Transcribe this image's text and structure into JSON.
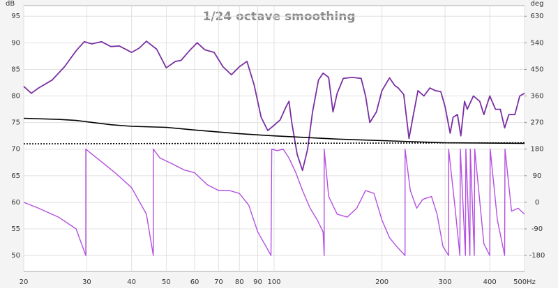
{
  "chart_data": {
    "type": "line",
    "title": "1/24 octave smoothing",
    "y_label": "dB",
    "y2_label": "deg",
    "xscale": "log",
    "xlim": [
      20,
      500
    ],
    "ylim": [
      47,
      97
    ],
    "y2lim": [
      -234,
      666
    ],
    "grid": true,
    "xticks": [
      20,
      30,
      40,
      50,
      60,
      70,
      80,
      90,
      100,
      200,
      300,
      400,
      {
        "value": 500,
        "label": "500Hz"
      }
    ],
    "yticks": [
      50,
      55,
      60,
      65,
      70,
      75,
      80,
      85,
      90,
      95
    ],
    "y2ticks": [
      -180,
      -90,
      0,
      90,
      180,
      270,
      360,
      450,
      540,
      630
    ],
    "series": [
      {
        "color": "#b44fe0",
        "axis": "y2",
        "width": 1.4,
        "x": [
          20,
          22,
          25,
          28,
          29.8,
          29.8,
          32,
          36,
          40,
          44,
          46,
          46,
          48,
          52,
          56,
          60,
          65,
          70,
          75,
          80,
          85,
          90,
          95,
          98,
          98.5,
          102,
          106,
          110,
          115,
          120,
          126,
          132,
          137,
          138,
          138,
          142,
          150,
          160,
          170,
          180,
          190,
          200,
          210,
          220,
          232,
          232,
          240,
          250,
          260,
          275,
          285,
          296,
          307,
          307,
          320,
          330,
          331,
          342,
          343,
          352,
          353,
          362,
          363,
          385,
          400,
          401,
          420,
          440,
          441,
          460,
          480,
          500
        ],
        "values": [
          0,
          -20,
          -50,
          -90,
          -180,
          180,
          150,
          100,
          50,
          -40,
          -180,
          180,
          150,
          130,
          110,
          100,
          60,
          40,
          40,
          30,
          -10,
          -100,
          -150,
          -180,
          180,
          175,
          180,
          150,
          100,
          40,
          -20,
          -60,
          -100,
          -180,
          180,
          20,
          -40,
          -50,
          -20,
          40,
          30,
          -60,
          -120,
          -150,
          -180,
          180,
          40,
          -20,
          10,
          20,
          -40,
          -150,
          -180,
          180,
          -20,
          -180,
          180,
          -180,
          180,
          -180,
          180,
          -180,
          180,
          -140,
          -180,
          180,
          -60,
          -180,
          180,
          -30,
          -20,
          -40
        ]
      },
      {
        "color": "#7a2fa3",
        "width": 1.8,
        "x": [
          20,
          21,
          22,
          24,
          26,
          28,
          29.5,
          31,
          33,
          35,
          37,
          40,
          42,
          44,
          47,
          50,
          53,
          55,
          58,
          61,
          64,
          68,
          72,
          76,
          80,
          84,
          88,
          92,
          96,
          100,
          104,
          108,
          110,
          112,
          116,
          120,
          124,
          128,
          133,
          137,
          142,
          146,
          150,
          156,
          165,
          175,
          180,
          185,
          193,
          200,
          210,
          217,
          222,
          230,
          238,
          244,
          252,
          262,
          272,
          282,
          292,
          300,
          310,
          316,
          325,
          332,
          340,
          346,
          360,
          375,
          385,
          400,
          415,
          428,
          440,
          452,
          470,
          485,
          500
        ],
        "values": [
          81.8,
          80.5,
          81.5,
          83,
          85.5,
          88.5,
          90.2,
          89.8,
          90.2,
          89.3,
          89.4,
          88.2,
          89,
          90.3,
          88.8,
          85.3,
          86.5,
          86.7,
          88.5,
          90,
          88.7,
          88.2,
          85.5,
          84,
          85.5,
          86.5,
          82,
          76,
          73.5,
          74.5,
          75.5,
          78,
          79,
          75,
          69,
          66,
          70,
          77,
          83,
          84.3,
          83.5,
          77,
          80.5,
          83.3,
          83.5,
          83.3,
          80,
          75,
          77,
          81,
          83.4,
          82,
          81.5,
          80.3,
          72,
          76,
          81,
          80,
          81.5,
          81,
          80.8,
          78,
          73,
          76,
          76.5,
          72.5,
          79,
          77.5,
          80,
          79,
          76.5,
          80,
          77.5,
          77.5,
          74,
          76.5,
          76.5,
          80,
          80.5
        ]
      },
      {
        "color": "#000000",
        "width": 1.6,
        "x": [
          20,
          25,
          28,
          35,
          40,
          50,
          60,
          80,
          100,
          150,
          200,
          300,
          500
        ],
        "values": [
          75.8,
          75.6,
          75.4,
          74.6,
          74.3,
          74.1,
          73.6,
          72.9,
          72.5,
          71.9,
          71.6,
          71.2,
          71.1
        ]
      },
      {
        "color": "#000000",
        "width": 1.6,
        "dashed": true,
        "x": [
          20,
          500
        ],
        "values": [
          71,
          71.2
        ]
      }
    ]
  }
}
